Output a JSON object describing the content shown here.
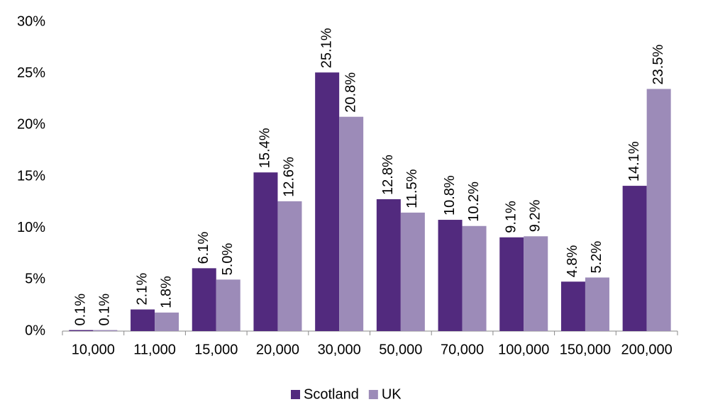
{
  "chart_data": {
    "type": "bar",
    "categories": [
      "10,000",
      "11,000",
      "15,000",
      "20,000",
      "30,000",
      "50,000",
      "70,000",
      "100,000",
      "150,000",
      "200,000"
    ],
    "series": [
      {
        "name": "Scotland",
        "color": "#522a7e",
        "values": [
          0.1,
          2.1,
          6.1,
          15.4,
          25.1,
          12.8,
          10.8,
          9.1,
          4.8,
          14.1
        ],
        "value_labels": [
          "0.1%",
          "2.1%",
          "6.1%",
          "15.4%",
          "25.1%",
          "12.8%",
          "10.8%",
          "9.1%",
          "4.8%",
          "14.1%"
        ]
      },
      {
        "name": "UK",
        "color": "#9c8bb8",
        "values": [
          0.1,
          1.8,
          5.0,
          12.6,
          20.8,
          11.5,
          10.2,
          9.2,
          5.2,
          23.5
        ],
        "value_labels": [
          "0.1%",
          "1.8%",
          "5.0%",
          "12.6%",
          "20.8%",
          "11.5%",
          "10.2%",
          "9.2%",
          "5.2%",
          "23.5%"
        ]
      }
    ],
    "ylim": [
      0,
      30
    ],
    "yticks": [
      {
        "value": 0,
        "label": "0%"
      },
      {
        "value": 5,
        "label": "5%"
      },
      {
        "value": 10,
        "label": "10%"
      },
      {
        "value": 15,
        "label": "15%"
      },
      {
        "value": 20,
        "label": "20%"
      },
      {
        "value": 25,
        "label": "25%"
      },
      {
        "value": 30,
        "label": "30%"
      }
    ],
    "grid": false,
    "legend": "bottom"
  }
}
